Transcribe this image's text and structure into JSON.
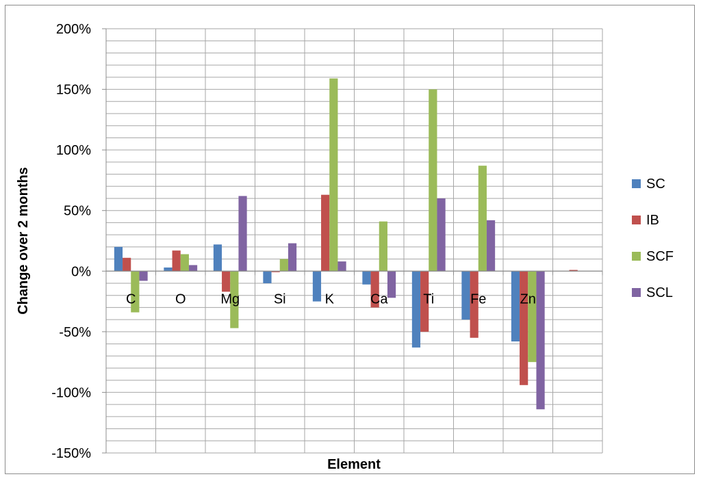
{
  "chart_data": {
    "type": "bar",
    "categories": [
      "C",
      "O",
      "Mg",
      "Si",
      "K",
      "Ca",
      "Ti",
      "Fe",
      "Zn",
      ""
    ],
    "series": [
      {
        "name": "SC",
        "color": "#4f81bd",
        "values": [
          20,
          3,
          22,
          -10,
          -25,
          -11,
          -63,
          -40,
          -58,
          null
        ]
      },
      {
        "name": "IB",
        "color": "#c0504d",
        "values": [
          11,
          17,
          -17,
          0,
          63,
          -30,
          -50,
          -55,
          -94,
          1
        ]
      },
      {
        "name": "SCF",
        "color": "#9bbb59",
        "values": [
          -34,
          14,
          -47,
          10,
          159,
          41,
          150,
          87,
          -75,
          null
        ]
      },
      {
        "name": "SCL",
        "color": "#8064a2",
        "values": [
          -8,
          5,
          62,
          23,
          8,
          -22,
          60,
          42,
          -114,
          null
        ]
      }
    ],
    "xlabel": "Element",
    "ylabel": "Change over 2 months",
    "ylim": [
      -150,
      200
    ],
    "yticks": [
      "200%",
      "150%",
      "100%",
      "50%",
      "0%",
      "-50%",
      "-100%",
      "-150%"
    ],
    "grid": true,
    "legend": "right"
  }
}
